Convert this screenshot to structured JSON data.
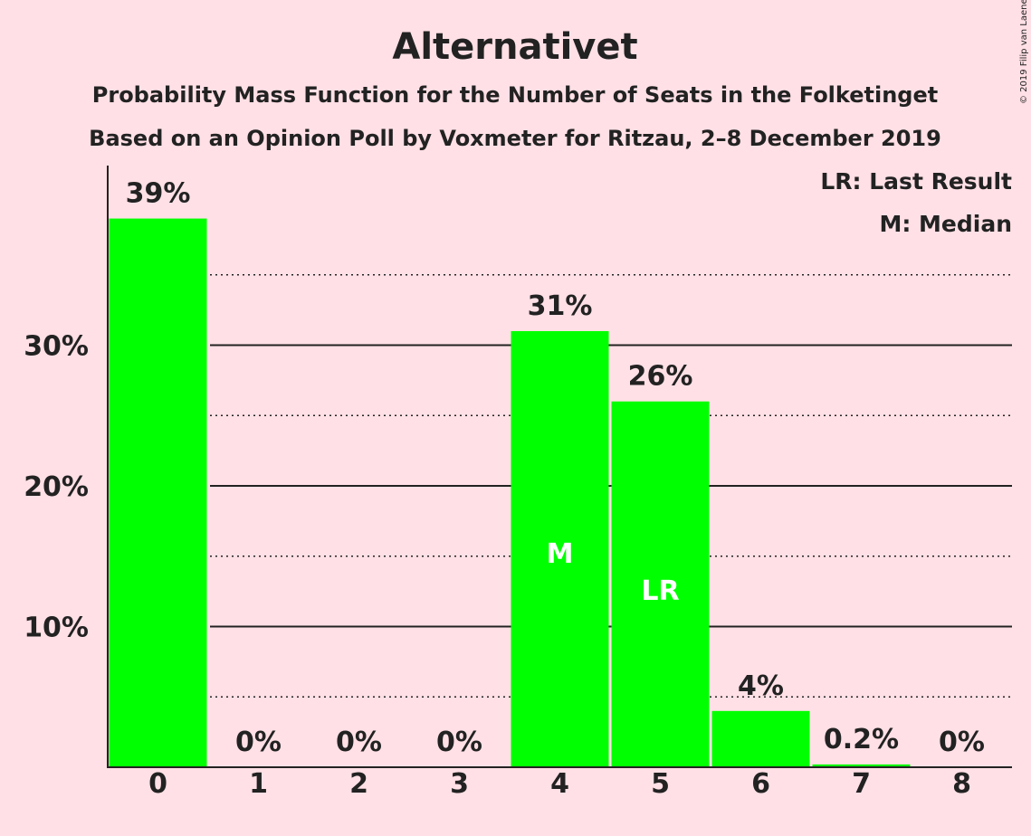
{
  "header": {
    "title": "Alternativet",
    "subtitle1": "Probability Mass Function for the Number of Seats in the Folketinget",
    "subtitle2": "Based on an Opinion Poll by Voxmeter for Ritzau, 2–8 December 2019",
    "copyright": "© 2019 Filip van Laenen"
  },
  "legend": {
    "lr": "LR: Last Result",
    "m": "M: Median"
  },
  "colors": {
    "background": "#ffe0e6",
    "bar": "#00ff00",
    "text": "#222222"
  },
  "chart_data": {
    "type": "bar",
    "categories": [
      "0",
      "1",
      "2",
      "3",
      "4",
      "5",
      "6",
      "7",
      "8"
    ],
    "values": [
      39,
      0,
      0,
      0,
      31,
      26,
      4,
      0.2,
      0
    ],
    "labels": [
      "39%",
      "0%",
      "0%",
      "0%",
      "31%",
      "26%",
      "4%",
      "0.2%",
      "0%"
    ],
    "yticks": [
      10,
      20,
      30
    ],
    "ytick_labels": [
      "10%",
      "20%",
      "30%"
    ],
    "minor_gridlines": [
      5,
      15,
      25,
      35
    ],
    "ylim": [
      0,
      42.5
    ],
    "grid": true,
    "legend_position": "top-right",
    "annotations": [
      {
        "category": "4",
        "text": "M"
      },
      {
        "category": "5",
        "text": "LR"
      }
    ]
  }
}
